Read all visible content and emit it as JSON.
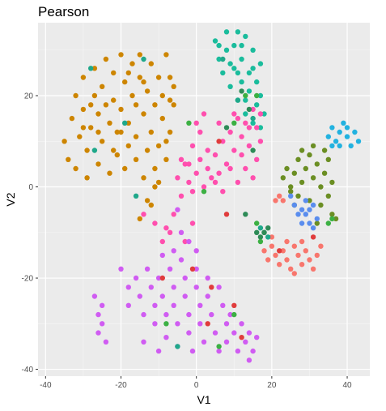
{
  "chart_data": {
    "type": "scatter",
    "title": "Pearson",
    "xlabel": "V1",
    "ylabel": "V2",
    "xlim": [
      -42,
      46
    ],
    "ylim": [
      -41.5,
      36
    ],
    "x_ticks": [
      -40,
      -20,
      0,
      20,
      40
    ],
    "y_ticks": [
      -40,
      -20,
      0,
      20
    ],
    "x_tick_labels": [
      "-40",
      "-20",
      "0",
      "20",
      "40"
    ],
    "y_tick_labels": [
      "-40",
      "-20",
      "0",
      "20"
    ],
    "grid": true,
    "legend": "none",
    "series": [
      {
        "color": "#CD8500",
        "points": [
          [
            -35,
            10
          ],
          [
            -34,
            6
          ],
          [
            -33,
            15
          ],
          [
            -32,
            20
          ],
          [
            -32,
            4
          ],
          [
            -31,
            11
          ],
          [
            -30,
            17
          ],
          [
            -30,
            24
          ],
          [
            -29,
            8
          ],
          [
            -29,
            2
          ],
          [
            -28,
            13
          ],
          [
            -27,
            20
          ],
          [
            -27,
            26
          ],
          [
            -26,
            5
          ],
          [
            -26,
            16
          ],
          [
            -25,
            10
          ],
          [
            -25,
            22
          ],
          [
            -24,
            28
          ],
          [
            -23,
            3
          ],
          [
            -23,
            14
          ],
          [
            -22,
            19
          ],
          [
            -22,
            25
          ],
          [
            -21,
            7
          ],
          [
            -21,
            12
          ],
          [
            -20,
            29
          ],
          [
            -20,
            17
          ],
          [
            -19,
            23
          ],
          [
            -19,
            4
          ],
          [
            -18,
            9
          ],
          [
            -18,
            14
          ],
          [
            -17,
            27
          ],
          [
            -17,
            20
          ],
          [
            -16,
            6
          ],
          [
            -16,
            11
          ],
          [
            -15,
            24
          ],
          [
            -15,
            29
          ],
          [
            -14,
            16
          ],
          [
            -14,
            2
          ],
          [
            -13,
            8
          ],
          [
            -13,
            21
          ],
          [
            -12,
            27
          ],
          [
            -12,
            12
          ],
          [
            -11,
            18
          ],
          [
            -11,
            4
          ],
          [
            -10,
            24
          ],
          [
            -10,
            9
          ],
          [
            -9,
            15
          ],
          [
            -9,
            20
          ],
          [
            -8,
            29
          ],
          [
            -8,
            10
          ],
          [
            -7,
            24
          ],
          [
            -7,
            19
          ],
          [
            -8,
            6
          ],
          [
            -11,
            0
          ],
          [
            -13,
            -3
          ],
          [
            -15,
            -7
          ],
          [
            -12,
            -4
          ],
          [
            -10,
            1
          ],
          [
            -28,
            18
          ],
          [
            -30,
            13
          ],
          [
            -24,
            18
          ],
          [
            -20,
            12
          ],
          [
            -16,
            18
          ],
          [
            -14,
            23
          ],
          [
            -18,
            25
          ],
          [
            -22,
            8
          ],
          [
            -26,
            12
          ],
          [
            -6,
            18
          ],
          [
            -7,
            12
          ],
          [
            -6,
            22
          ]
        ]
      },
      {
        "color": "#1ABC9C",
        "points": [
          [
            5,
            32
          ],
          [
            6,
            28
          ],
          [
            7,
            25
          ],
          [
            8,
            30
          ],
          [
            8,
            34
          ],
          [
            9,
            22
          ],
          [
            10,
            26
          ],
          [
            10,
            31
          ],
          [
            11,
            34
          ],
          [
            11,
            19
          ],
          [
            12,
            23
          ],
          [
            12,
            28
          ],
          [
            13,
            33
          ],
          [
            13,
            16
          ],
          [
            14,
            21
          ],
          [
            14,
            25
          ],
          [
            15,
            30
          ],
          [
            15,
            14
          ],
          [
            16,
            18
          ],
          [
            16,
            23
          ],
          [
            17,
            27
          ],
          [
            17,
            20
          ],
          [
            18,
            16
          ],
          [
            17,
            13
          ],
          [
            13,
            19
          ],
          [
            9,
            27
          ],
          [
            6,
            31
          ],
          [
            11,
            25
          ],
          [
            15,
            26
          ],
          [
            12,
            31
          ]
        ]
      },
      {
        "color": "#FF4FAE",
        "points": [
          [
            -5,
            2
          ],
          [
            -4,
            -2
          ],
          [
            -3,
            5
          ],
          [
            -2,
            1
          ],
          [
            -1,
            -1
          ],
          [
            0,
            3
          ],
          [
            1,
            6
          ],
          [
            2,
            0
          ],
          [
            3,
            4
          ],
          [
            4,
            2
          ],
          [
            5,
            7
          ],
          [
            6,
            3
          ],
          [
            7,
            10
          ],
          [
            8,
            5
          ],
          [
            9,
            12
          ],
          [
            10,
            8
          ],
          [
            11,
            15
          ],
          [
            12,
            11
          ],
          [
            13,
            14
          ],
          [
            14,
            9
          ],
          [
            15,
            17
          ],
          [
            16,
            13
          ],
          [
            17,
            16
          ],
          [
            16,
            6
          ],
          [
            15,
            2
          ],
          [
            13,
            4
          ],
          [
            11,
            1
          ],
          [
            9,
            4
          ],
          [
            7,
            -1
          ],
          [
            5,
            1
          ],
          [
            3,
            8
          ],
          [
            1,
            12
          ],
          [
            0,
            14
          ],
          [
            -1,
            9
          ],
          [
            -2,
            5
          ],
          [
            -4,
            6
          ],
          [
            2,
            16
          ],
          [
            6,
            14
          ],
          [
            10,
            16
          ],
          [
            12,
            7
          ],
          [
            -6,
            -6
          ],
          [
            -8,
            -9
          ],
          [
            -11,
            -8
          ],
          [
            -14,
            -6
          ],
          [
            -9,
            -12
          ],
          [
            -7,
            -10
          ],
          [
            -3,
            -12
          ],
          [
            -1,
            -8
          ],
          [
            14,
            13
          ],
          [
            17,
            10
          ]
        ]
      },
      {
        "color": "#D05CF2",
        "points": [
          [
            -27,
            -24
          ],
          [
            -26,
            -28
          ],
          [
            -26,
            -32
          ],
          [
            -25,
            -26
          ],
          [
            -25,
            -30
          ],
          [
            -24,
            -34
          ],
          [
            -20,
            -18
          ],
          [
            -18,
            -22
          ],
          [
            -16,
            -20
          ],
          [
            -15,
            -24
          ],
          [
            -14,
            -28
          ],
          [
            -13,
            -18
          ],
          [
            -12,
            -22
          ],
          [
            -11,
            -26
          ],
          [
            -11,
            -30
          ],
          [
            -10,
            -20
          ],
          [
            -9,
            -24
          ],
          [
            -8,
            -28
          ],
          [
            -8,
            -33
          ],
          [
            -7,
            -18
          ],
          [
            -6,
            -22
          ],
          [
            -6,
            -26
          ],
          [
            -5,
            -30
          ],
          [
            -5,
            -35
          ],
          [
            -4,
            -16
          ],
          [
            -3,
            -20
          ],
          [
            -3,
            -24
          ],
          [
            -2,
            -28
          ],
          [
            -2,
            -32
          ],
          [
            -1,
            -36
          ],
          [
            0,
            -18
          ],
          [
            0,
            -22
          ],
          [
            1,
            -26
          ],
          [
            1,
            -30
          ],
          [
            2,
            -34
          ],
          [
            3,
            -20
          ],
          [
            3,
            -24
          ],
          [
            4,
            -28
          ],
          [
            5,
            -32
          ],
          [
            6,
            -36
          ],
          [
            6,
            -22
          ],
          [
            7,
            -26
          ],
          [
            8,
            -30
          ],
          [
            8,
            -34
          ],
          [
            9,
            -28
          ],
          [
            10,
            -32
          ],
          [
            11,
            -36
          ],
          [
            12,
            -30
          ],
          [
            13,
            -34
          ],
          [
            14,
            -38
          ],
          [
            14,
            -32
          ],
          [
            15,
            -36
          ],
          [
            16,
            -33
          ],
          [
            -4,
            -10
          ],
          [
            -2,
            -12
          ],
          [
            0,
            -14
          ],
          [
            -5,
            -5
          ],
          [
            -9,
            -15
          ],
          [
            -18,
            -26
          ],
          [
            -14,
            -34
          ],
          [
            -10,
            -36
          ],
          [
            -6,
            -14
          ]
        ]
      },
      {
        "color": "#F8766D",
        "points": [
          [
            18,
            -14
          ],
          [
            19,
            -16
          ],
          [
            20,
            -13
          ],
          [
            21,
            -15
          ],
          [
            22,
            -17
          ],
          [
            23,
            -14
          ],
          [
            24,
            -16
          ],
          [
            25,
            -18
          ],
          [
            26,
            -13
          ],
          [
            27,
            -15
          ],
          [
            28,
            -17
          ],
          [
            29,
            -14
          ],
          [
            30,
            -16
          ],
          [
            31,
            -18
          ],
          [
            32,
            -15
          ],
          [
            20,
            -11
          ],
          [
            24,
            -12
          ],
          [
            28,
            -12
          ],
          [
            33,
            -13
          ],
          [
            26,
            -19
          ],
          [
            22,
            -2
          ],
          [
            23,
            -3
          ],
          [
            21,
            -3
          ]
        ]
      },
      {
        "color": "#6B8E23",
        "points": [
          [
            23,
            2
          ],
          [
            24,
            4
          ],
          [
            25,
            0
          ],
          [
            26,
            3
          ],
          [
            27,
            6
          ],
          [
            28,
            1
          ],
          [
            29,
            4
          ],
          [
            30,
            7
          ],
          [
            31,
            2
          ],
          [
            32,
            5
          ],
          [
            33,
            0
          ],
          [
            34,
            3
          ],
          [
            35,
            6
          ],
          [
            36,
            1
          ],
          [
            27,
            -2
          ],
          [
            30,
            -3
          ],
          [
            33,
            -4
          ],
          [
            35,
            -2
          ],
          [
            28,
            8
          ],
          [
            31,
            9
          ],
          [
            34,
            8
          ],
          [
            36,
            -6
          ],
          [
            37,
            -7
          ],
          [
            25,
            -1
          ],
          [
            32,
            -8
          ],
          [
            26,
            -4
          ]
        ]
      },
      {
        "color": "#5A8DEE",
        "points": [
          [
            25,
            -2
          ],
          [
            26,
            -4
          ],
          [
            27,
            -6
          ],
          [
            28,
            -8
          ],
          [
            29,
            -6
          ],
          [
            30,
            -5
          ],
          [
            29,
            -3
          ],
          [
            30,
            -8
          ],
          [
            31,
            -9
          ],
          [
            32,
            -7
          ],
          [
            31,
            -4
          ],
          [
            28,
            -5
          ]
        ]
      },
      {
        "color": "#22B2E0",
        "points": [
          [
            35,
            11
          ],
          [
            36,
            13
          ],
          [
            37,
            10
          ],
          [
            38,
            12
          ],
          [
            39,
            14
          ],
          [
            40,
            11
          ],
          [
            41,
            9
          ],
          [
            42,
            12
          ],
          [
            43,
            10
          ],
          [
            38,
            9
          ],
          [
            36,
            9
          ],
          [
            40,
            13
          ]
        ]
      },
      {
        "color": "#1FA88A",
        "points": [
          [
            -28,
            26
          ],
          [
            -14,
            28
          ],
          [
            -19,
            14
          ],
          [
            -5,
            -35
          ],
          [
            -27,
            8
          ],
          [
            -16,
            -2
          ],
          [
            11,
            19
          ],
          [
            15,
            15
          ],
          [
            7,
            28
          ],
          [
            18,
            -10
          ],
          [
            17,
            -9
          ],
          [
            19,
            -11
          ]
        ]
      },
      {
        "color": "#2E8B57",
        "points": [
          [
            8,
            13
          ],
          [
            16,
            -10
          ],
          [
            17,
            -11
          ],
          [
            18,
            -10
          ],
          [
            19,
            -9
          ],
          [
            12,
            21
          ],
          [
            14,
            17
          ],
          [
            15,
            8
          ],
          [
            13,
            -6
          ]
        ]
      },
      {
        "color": "#3CB043",
        "points": [
          [
            10,
            14
          ],
          [
            17,
            -12
          ],
          [
            16,
            -8
          ],
          [
            -2,
            14
          ],
          [
            2,
            -1
          ],
          [
            36,
            -7
          ],
          [
            35,
            -8
          ],
          [
            16,
            20
          ],
          [
            13,
            20
          ],
          [
            -8,
            -30
          ],
          [
            6,
            -35
          ],
          [
            10,
            -28
          ]
        ]
      },
      {
        "color": "#E03C3C",
        "points": [
          [
            6,
            10
          ],
          [
            8,
            -6
          ],
          [
            22,
            -14
          ],
          [
            -1,
            -18
          ],
          [
            4,
            -22
          ],
          [
            3,
            -30
          ],
          [
            10,
            -26
          ],
          [
            12,
            -33
          ],
          [
            31,
            -11
          ],
          [
            -9,
            -20
          ]
        ]
      }
    ]
  }
}
